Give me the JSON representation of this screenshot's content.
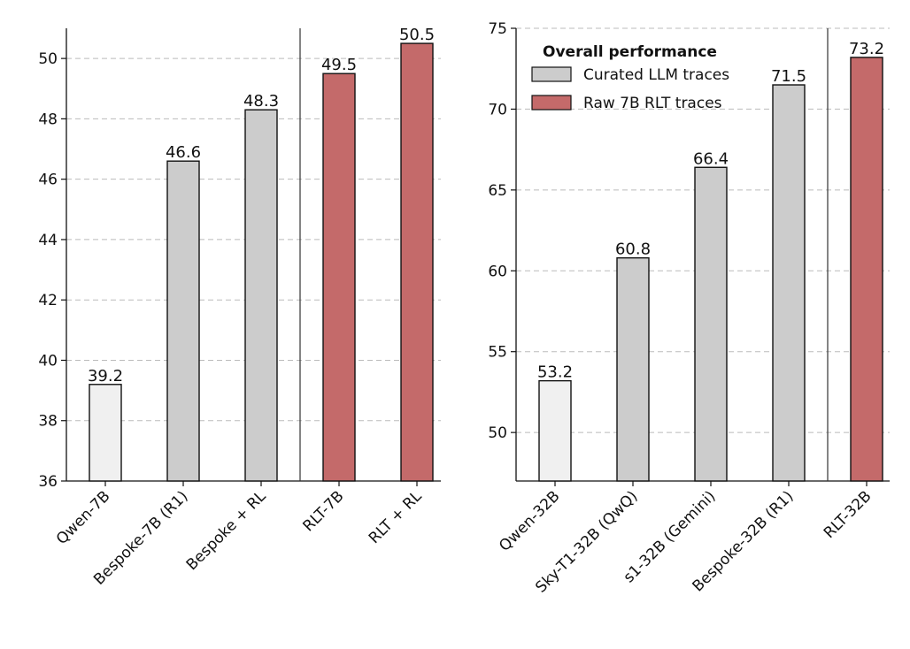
{
  "colors": {
    "baseline": "#f0f0f0",
    "curated": "#cccccc",
    "rlt": "#c46a6a",
    "edge": "#111111",
    "grid": "#bbbbbb"
  },
  "chart_data": [
    {
      "type": "bar",
      "categories": [
        "Qwen-7B",
        "Bespoke-7B (R1)",
        "Bespoke + RL",
        "RLT-7B",
        "RLT + RL"
      ],
      "values": [
        39.2,
        46.6,
        48.3,
        49.5,
        50.5
      ],
      "value_labels": [
        "39.2",
        "46.6",
        "48.3",
        "49.5",
        "50.5"
      ],
      "groups": [
        "baseline",
        "curated",
        "curated",
        "rlt",
        "rlt"
      ],
      "ylim": [
        36,
        51
      ],
      "yticks": [
        36,
        38,
        40,
        42,
        44,
        46,
        48,
        50
      ],
      "grid": "horizontal dashed",
      "separator_after_index": 2,
      "xlabel": "",
      "ylabel": ""
    },
    {
      "type": "bar",
      "categories": [
        "Qwen-32B",
        "Sky-T1-32B (QwQ)",
        "s1-32B (Gemini)",
        "Bespoke-32B (R1)",
        "RLT-32B"
      ],
      "values": [
        53.2,
        60.8,
        66.4,
        71.5,
        73.2
      ],
      "value_labels": [
        "53.2",
        "60.8",
        "66.4",
        "71.5",
        "73.2"
      ],
      "groups": [
        "baseline",
        "curated",
        "curated",
        "curated",
        "rlt"
      ],
      "ylim": [
        47,
        75
      ],
      "yticks": [
        50,
        55,
        60,
        65,
        70,
        75
      ],
      "grid": "horizontal dashed",
      "separator_after_index": 3,
      "xlabel": "",
      "ylabel": "",
      "legend": {
        "title": "Overall performance",
        "placement": "top-left",
        "entries": [
          {
            "label": "Curated LLM traces",
            "group": "curated"
          },
          {
            "label": "Raw 7B RLT traces",
            "group": "rlt"
          }
        ]
      }
    }
  ]
}
